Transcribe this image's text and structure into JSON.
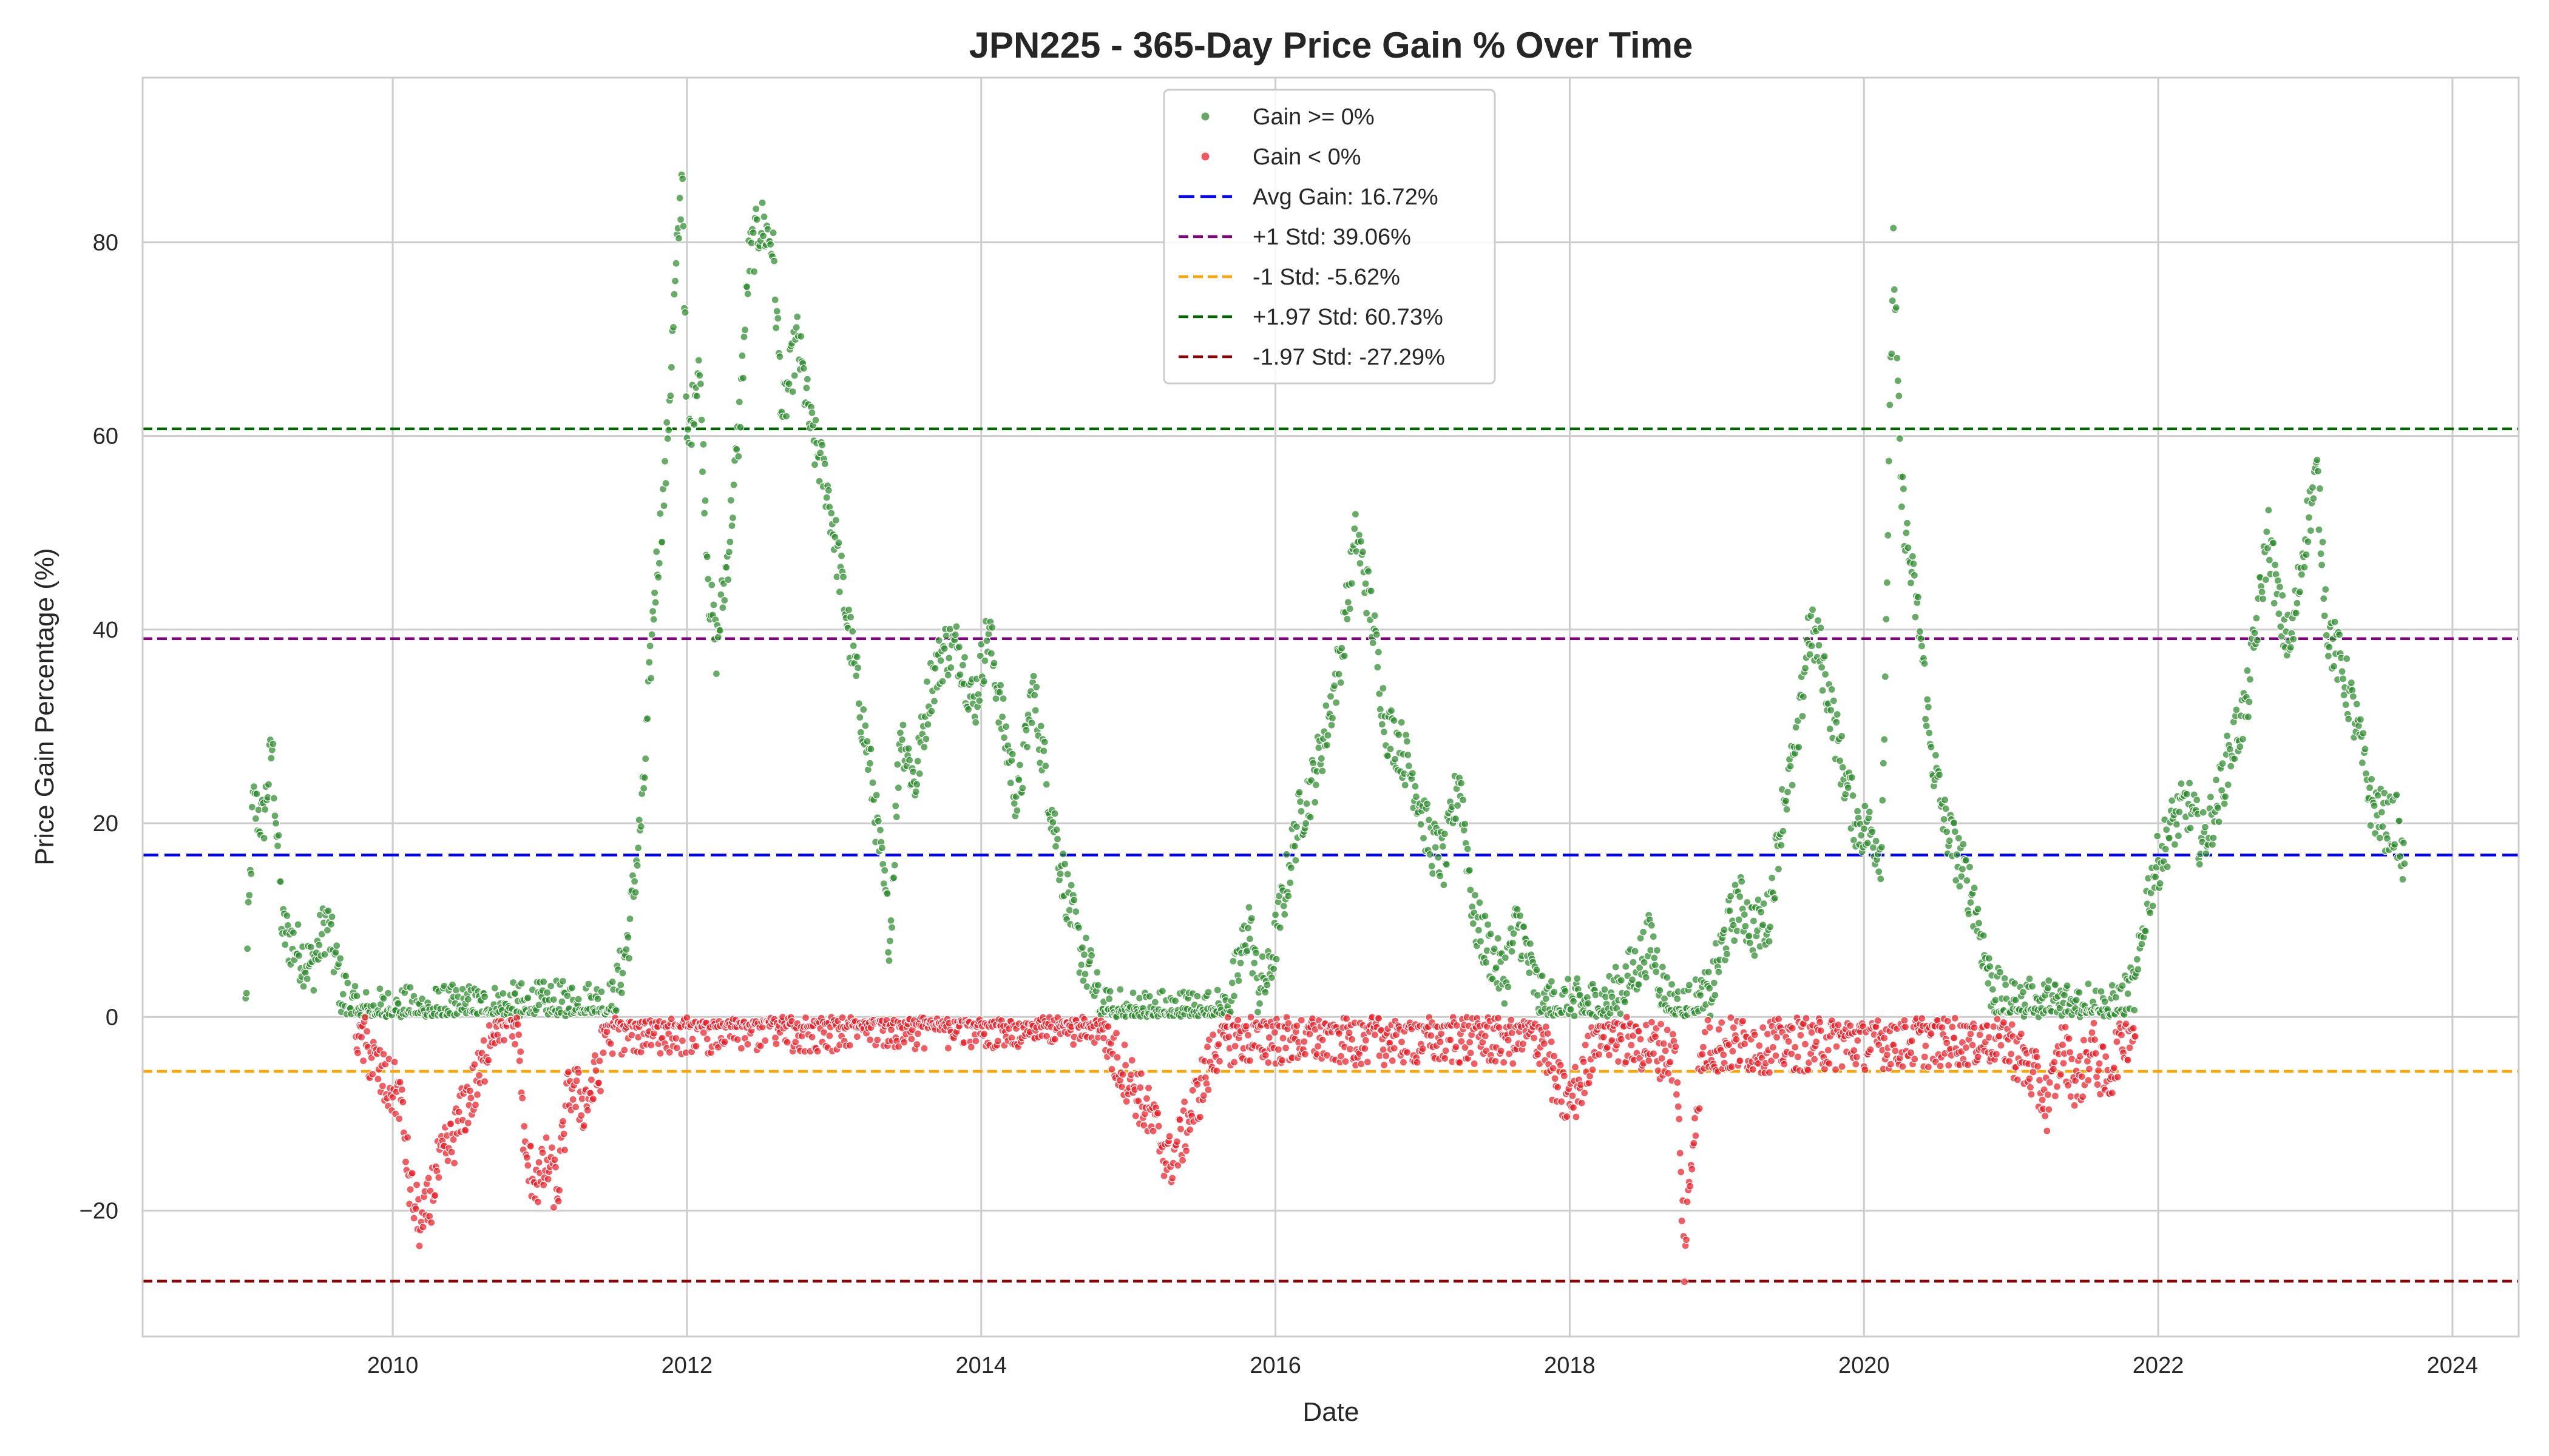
{
  "chart_data": {
    "type": "scatter",
    "title": "JPN225 - 365-Day Price Gain % Over Time",
    "xlabel": "Date",
    "ylabel": "Price Gain Percentage (%)",
    "xlim": [
      2008.3,
      2024.45
    ],
    "ylim": [
      -33,
      97
    ],
    "x_ticks": [
      2010,
      2012,
      2014,
      2016,
      2018,
      2020,
      2022,
      2024
    ],
    "x_tick_labels": [
      "2010",
      "2012",
      "2014",
      "2016",
      "2018",
      "2020",
      "2022",
      "2024"
    ],
    "y_ticks": [
      -20,
      0,
      20,
      40,
      60,
      80
    ],
    "y_tick_labels": [
      "−20",
      "0",
      "20",
      "40",
      "60",
      "80"
    ],
    "grid": true,
    "legend_position": "top-center",
    "series": [
      {
        "name": "Gain >= 0%",
        "marker": "dot",
        "color": "#2e8b2e",
        "rule": "gain >= 0",
        "anchors": [
          [
            2009.0,
            1
          ],
          [
            2009.05,
            22
          ],
          [
            2009.12,
            20
          ],
          [
            2009.18,
            28
          ],
          [
            2009.25,
            9
          ],
          [
            2009.35,
            7
          ],
          [
            2009.45,
            5
          ],
          [
            2009.55,
            10
          ],
          [
            2009.65,
            3
          ],
          [
            2009.75,
            0
          ],
          [
            2011.5,
            1
          ],
          [
            2011.6,
            8
          ],
          [
            2011.7,
            22
          ],
          [
            2011.78,
            44
          ],
          [
            2011.85,
            55
          ],
          [
            2011.92,
            75
          ],
          [
            2011.97,
            88
          ],
          [
            2012.0,
            58
          ],
          [
            2012.08,
            68
          ],
          [
            2012.15,
            44
          ],
          [
            2012.2,
            38
          ],
          [
            2012.28,
            48
          ],
          [
            2012.35,
            60
          ],
          [
            2012.42,
            78
          ],
          [
            2012.5,
            82
          ],
          [
            2012.58,
            80
          ],
          [
            2012.65,
            62
          ],
          [
            2012.75,
            70
          ],
          [
            2012.85,
            60
          ],
          [
            2012.95,
            55
          ],
          [
            2013.05,
            45
          ],
          [
            2013.15,
            35
          ],
          [
            2013.25,
            25
          ],
          [
            2013.32,
            16
          ],
          [
            2013.38,
            8
          ],
          [
            2013.45,
            30
          ],
          [
            2013.55,
            24
          ],
          [
            2013.65,
            34
          ],
          [
            2013.75,
            38
          ],
          [
            2013.85,
            38
          ],
          [
            2013.95,
            32
          ],
          [
            2014.05,
            40
          ],
          [
            2014.15,
            30
          ],
          [
            2014.25,
            22
          ],
          [
            2014.35,
            34
          ],
          [
            2014.45,
            24
          ],
          [
            2014.55,
            15
          ],
          [
            2014.65,
            8
          ],
          [
            2014.75,
            4
          ],
          [
            2014.82,
            0
          ],
          [
            2015.65,
            0
          ],
          [
            2015.75,
            5
          ],
          [
            2015.82,
            10
          ],
          [
            2015.88,
            3
          ],
          [
            2015.95,
            4
          ],
          [
            2016.05,
            12
          ],
          [
            2016.15,
            20
          ],
          [
            2016.25,
            24
          ],
          [
            2016.35,
            30
          ],
          [
            2016.45,
            38
          ],
          [
            2016.55,
            50
          ],
          [
            2016.65,
            42
          ],
          [
            2016.75,
            30
          ],
          [
            2016.85,
            28
          ],
          [
            2016.95,
            24
          ],
          [
            2017.05,
            18
          ],
          [
            2017.15,
            16
          ],
          [
            2017.25,
            25
          ],
          [
            2017.35,
            10
          ],
          [
            2017.45,
            7
          ],
          [
            2017.55,
            4
          ],
          [
            2017.65,
            10
          ],
          [
            2017.75,
            4
          ],
          [
            2017.82,
            1
          ],
          [
            2018.2,
            1
          ],
          [
            2018.3,
            2
          ],
          [
            2018.45,
            5
          ],
          [
            2018.55,
            8
          ],
          [
            2018.65,
            2
          ],
          [
            2018.75,
            0
          ],
          [
            2018.95,
            2
          ],
          [
            2019.05,
            8
          ],
          [
            2019.15,
            12
          ],
          [
            2019.25,
            9
          ],
          [
            2019.35,
            10
          ],
          [
            2019.45,
            22
          ],
          [
            2019.55,
            28
          ],
          [
            2019.62,
            40
          ],
          [
            2019.7,
            38
          ],
          [
            2019.8,
            30
          ],
          [
            2019.88,
            24
          ],
          [
            2019.95,
            20
          ],
          [
            2020.05,
            19
          ],
          [
            2020.12,
            17
          ],
          [
            2020.2,
            80
          ],
          [
            2020.25,
            55
          ],
          [
            2020.3,
            48
          ],
          [
            2020.38,
            40
          ],
          [
            2020.45,
            28
          ],
          [
            2020.55,
            20
          ],
          [
            2020.65,
            16
          ],
          [
            2020.75,
            12
          ],
          [
            2020.85,
            4
          ],
          [
            2020.95,
            1
          ],
          [
            2021.55,
            1
          ],
          [
            2021.65,
            0
          ],
          [
            2021.75,
            1
          ],
          [
            2021.85,
            3
          ],
          [
            2021.92,
            12
          ],
          [
            2022.0,
            16
          ],
          [
            2022.1,
            20
          ],
          [
            2022.2,
            22
          ],
          [
            2022.3,
            18
          ],
          [
            2022.4,
            22
          ],
          [
            2022.5,
            28
          ],
          [
            2022.6,
            32
          ],
          [
            2022.68,
            42
          ],
          [
            2022.75,
            50
          ],
          [
            2022.82,
            42
          ],
          [
            2022.9,
            38
          ],
          [
            2023.0,
            50
          ],
          [
            2023.08,
            56
          ],
          [
            2023.15,
            40
          ],
          [
            2023.25,
            36
          ],
          [
            2023.35,
            30
          ],
          [
            2023.45,
            22
          ],
          [
            2023.55,
            20
          ],
          [
            2023.62,
            20
          ],
          [
            2023.68,
            14
          ]
        ]
      },
      {
        "name": "Gain < 0%",
        "marker": "dot",
        "color": "#e8202a",
        "rule": "gain < 0",
        "anchors": [
          [
            2009.75,
            -1
          ],
          [
            2009.85,
            -4
          ],
          [
            2009.95,
            -7
          ],
          [
            2010.05,
            -8
          ],
          [
            2010.12,
            -18
          ],
          [
            2010.2,
            -22
          ],
          [
            2010.3,
            -16
          ],
          [
            2010.4,
            -13
          ],
          [
            2010.5,
            -9
          ],
          [
            2010.6,
            -6
          ],
          [
            2010.65,
            -2
          ],
          [
            2010.7,
            0
          ],
          [
            2010.85,
            0
          ],
          [
            2010.9,
            -15
          ],
          [
            2011.0,
            -17
          ],
          [
            2011.05,
            -15
          ],
          [
            2011.12,
            -18
          ],
          [
            2011.2,
            -7
          ],
          [
            2011.3,
            -9
          ],
          [
            2011.4,
            -6
          ],
          [
            2011.45,
            -1
          ],
          [
            2014.82,
            0
          ],
          [
            2014.9,
            -4
          ],
          [
            2015.0,
            -6
          ],
          [
            2015.1,
            -9
          ],
          [
            2015.2,
            -12
          ],
          [
            2015.28,
            -15
          ],
          [
            2015.35,
            -13
          ],
          [
            2015.45,
            -9
          ],
          [
            2015.55,
            -5
          ],
          [
            2015.62,
            -2
          ],
          [
            2017.82,
            -2
          ],
          [
            2017.9,
            -7
          ],
          [
            2018.0,
            -9
          ],
          [
            2018.1,
            -6
          ],
          [
            2018.18,
            -1
          ],
          [
            2018.72,
            -4
          ],
          [
            2018.78,
            -25
          ],
          [
            2018.85,
            -10
          ],
          [
            2018.92,
            -3
          ],
          [
            2020.95,
            -2
          ],
          [
            2021.05,
            -4
          ],
          [
            2021.15,
            -6
          ],
          [
            2021.25,
            -9
          ],
          [
            2021.35,
            -3
          ],
          [
            2021.45,
            -7
          ],
          [
            2021.55,
            -3
          ],
          [
            2021.65,
            -7
          ],
          [
            2021.75,
            -2
          ],
          [
            2021.85,
            -1
          ]
        ]
      }
    ],
    "reference_lines": [
      {
        "label": "Avg Gain: 16.72%",
        "value": 16.72,
        "color": "#0000ff",
        "style": "long-dash"
      },
      {
        "label": "+1 Std: 39.06%",
        "value": 39.06,
        "color": "#800080",
        "style": "dash"
      },
      {
        "label": "-1 Std: -5.62%",
        "value": -5.62,
        "color": "#ffa500",
        "style": "dash"
      },
      {
        "label": "+1.97 Std: 60.73%",
        "value": 60.73,
        "color": "#006400",
        "style": "dash"
      },
      {
        "label": "-1.97 Std: -27.29%",
        "value": -27.29,
        "color": "#8b0000",
        "style": "dash"
      }
    ]
  }
}
